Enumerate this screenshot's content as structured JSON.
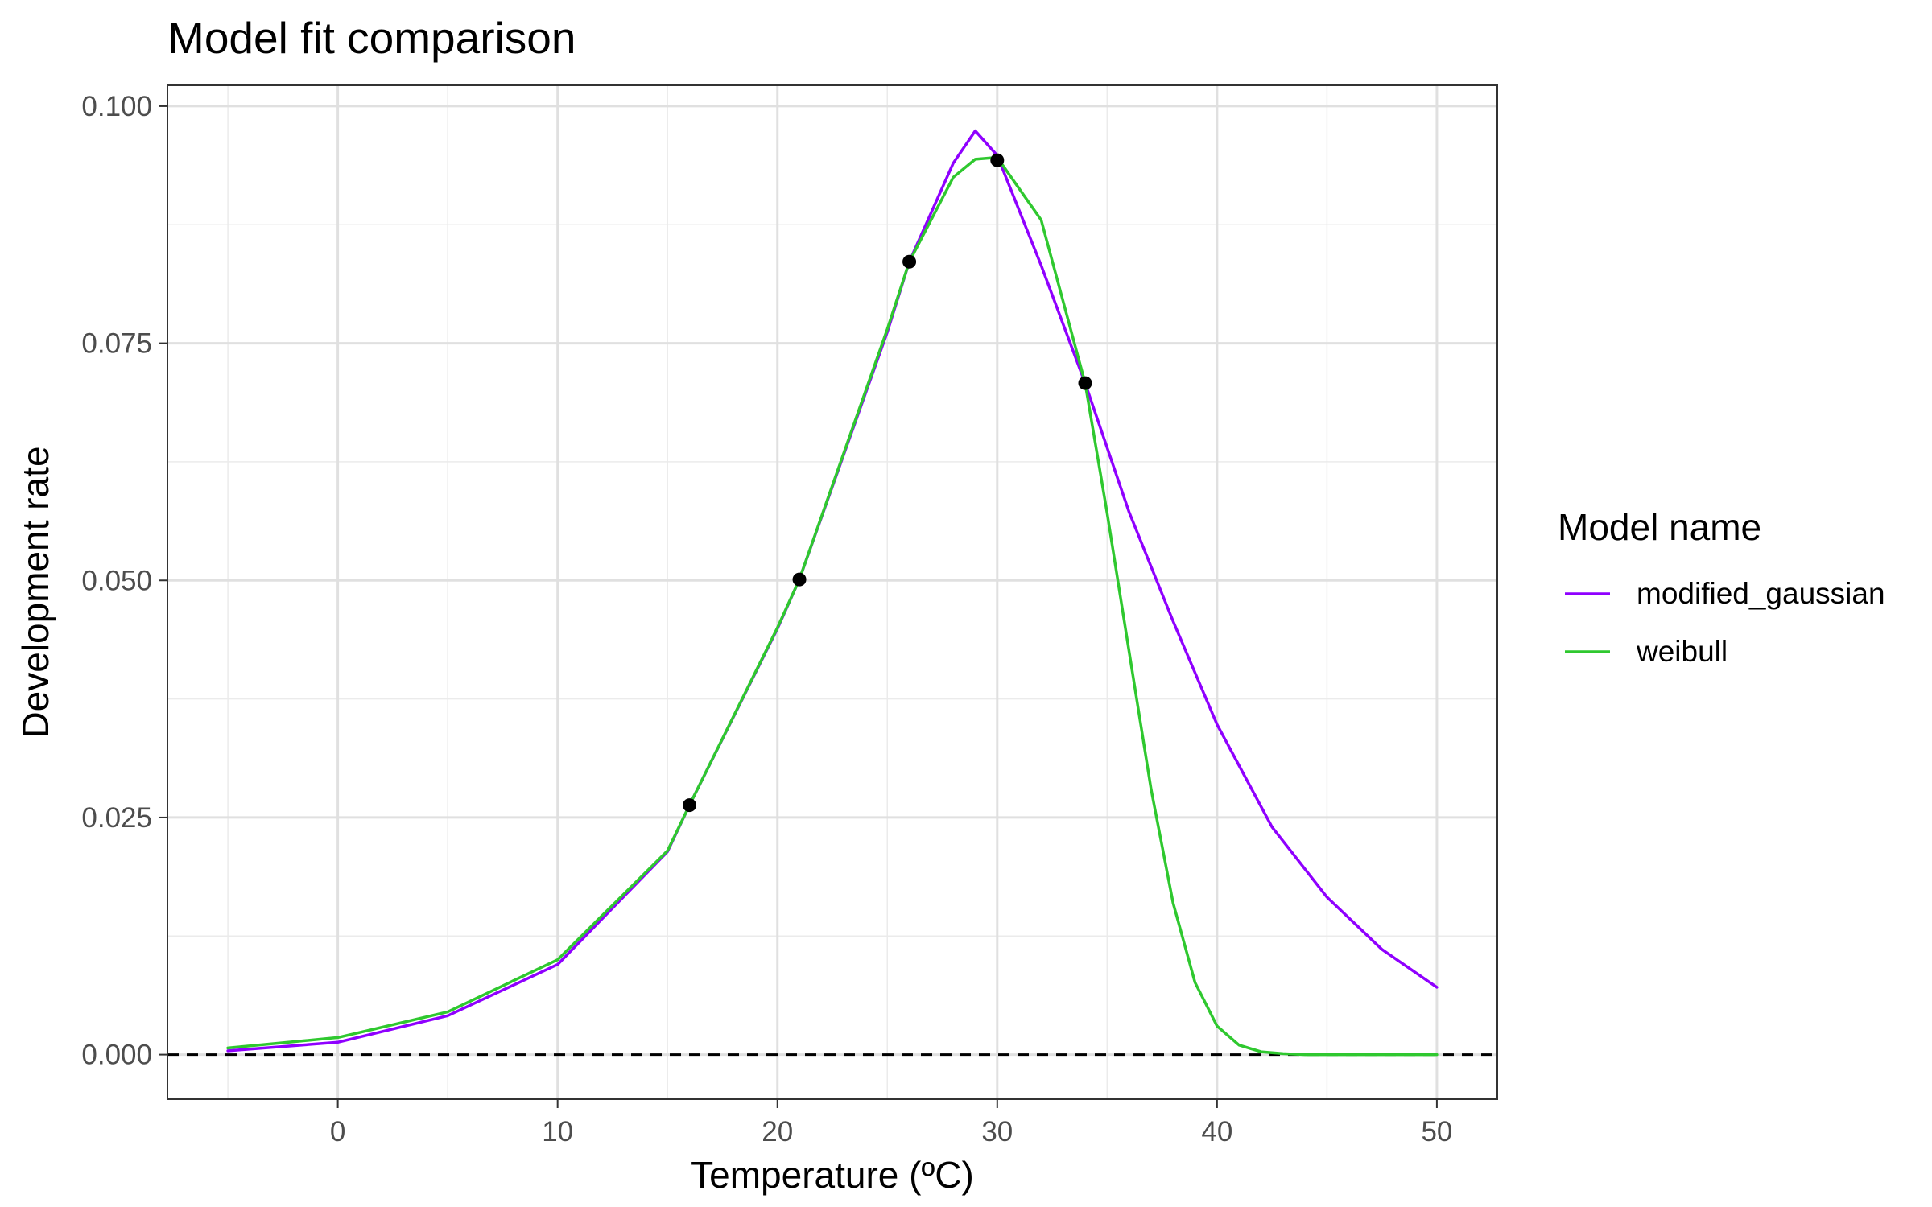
{
  "chart_data": {
    "type": "line",
    "title": "Model fit comparison",
    "xlabel": "Temperature (ºC)",
    "ylabel": "Development rate",
    "xlim": [
      -7.75,
      52.75
    ],
    "ylim": [
      -0.0047,
      0.1022
    ],
    "x_ticks": [
      0,
      10,
      20,
      30,
      40,
      50
    ],
    "x_tick_labels": [
      "0",
      "10",
      "20",
      "30",
      "40",
      "50"
    ],
    "y_ticks": [
      0.0,
      0.025,
      0.05,
      0.075,
      0.1
    ],
    "y_tick_labels": [
      "0.000",
      "0.025",
      "0.050",
      "0.075",
      "0.100"
    ],
    "x_minor_ticks": [
      -5,
      5,
      15,
      25,
      35,
      45
    ],
    "y_minor_ticks": [
      0.0125,
      0.0375,
      0.0625,
      0.0875
    ],
    "grid": true,
    "reference_line": {
      "y": 0,
      "style": "dashed",
      "color": "#000000"
    },
    "legend": {
      "title": "Model name",
      "position": "right",
      "entries": [
        {
          "label": "modified_gaussian",
          "color": "#8f00ff"
        },
        {
          "label": "weibull",
          "color": "#2fc82f"
        }
      ]
    },
    "points": {
      "color": "#000000",
      "x": [
        16,
        21,
        26,
        30,
        34
      ],
      "y": [
        0.0263,
        0.0501,
        0.0836,
        0.0943,
        0.0708
      ]
    },
    "series": [
      {
        "name": "modified_gaussian",
        "color": "#8f00ff",
        "x": [
          -5,
          0,
          5,
          10,
          15,
          16,
          20,
          21,
          25,
          26,
          28,
          29,
          30,
          32,
          34,
          36,
          38,
          40,
          42.5,
          45,
          47.5,
          50
        ],
        "y": [
          0.0004,
          0.0013,
          0.0041,
          0.0095,
          0.0214,
          0.0263,
          0.0449,
          0.0501,
          0.0762,
          0.0836,
          0.094,
          0.0974,
          0.0948,
          0.0832,
          0.0708,
          0.0572,
          0.0457,
          0.0348,
          0.024,
          0.0166,
          0.0111,
          0.0071
        ]
      },
      {
        "name": "weibull",
        "color": "#2fc82f",
        "x": [
          -5,
          0,
          5,
          10,
          15,
          16,
          20,
          21,
          25,
          26,
          28,
          29,
          30,
          32,
          34,
          35,
          36,
          37,
          38,
          39,
          40,
          41,
          42,
          43,
          44,
          45,
          47.5,
          50
        ],
        "y": [
          0.0007,
          0.0018,
          0.0045,
          0.01,
          0.0215,
          0.0263,
          0.045,
          0.0501,
          0.0765,
          0.0836,
          0.0925,
          0.0944,
          0.0946,
          0.088,
          0.0708,
          0.0571,
          0.0425,
          0.028,
          0.016,
          0.0076,
          0.003,
          0.001,
          0.0003,
          0.0001,
          0.0,
          0.0,
          0.0,
          0.0
        ]
      }
    ]
  }
}
